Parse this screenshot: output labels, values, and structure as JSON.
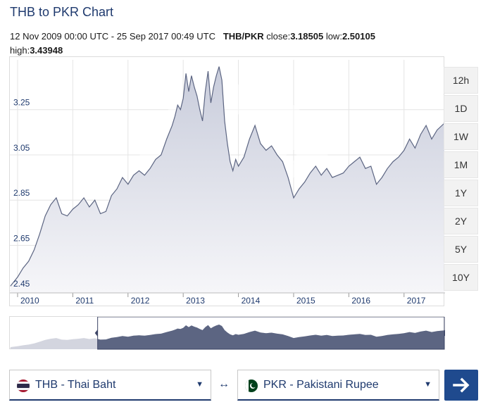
{
  "page": {
    "title": "THB to PKR Chart",
    "date_range": "12 Nov 2009 00:00 UTC - 25 Sep 2017 00:49 UTC",
    "pair": "THB/PKR",
    "close_label": "close:",
    "close_value": "3.18505",
    "low_label": "low:",
    "low_value": "2.50105",
    "high_label": "high:",
    "high_value": "3.43948"
  },
  "range_buttons": [
    "12h",
    "1D",
    "1W",
    "1M",
    "1Y",
    "2Y",
    "5Y",
    "10Y"
  ],
  "converter": {
    "from_label": "THB - Thai Baht",
    "to_label": "PKR - Pakistani Rupee",
    "swap_symbol": "↔",
    "go_icon": "arrow-right-icon"
  },
  "colors": {
    "title": "#1f3a6e",
    "line": "#5c6582",
    "area_top": "#c8ccdb",
    "area_bottom": "#f6f6f9",
    "navigator_fill": "#5c6582",
    "navigator_handle": "#3d4566",
    "go_button": "#1f4a8e"
  },
  "chart_data": {
    "type": "area",
    "title": "",
    "xlabel": "",
    "ylabel": "",
    "ylim": [
      2.44,
      3.47
    ],
    "xlim": [
      2009.86,
      2017.73
    ],
    "y_ticks": [
      2.45,
      2.65,
      2.85,
      3.05,
      3.25
    ],
    "x_ticks": [
      "2010",
      "2011",
      "2012",
      "2013",
      "2014",
      "2015",
      "2016",
      "2017"
    ],
    "x_tick_values": [
      2010,
      2011,
      2012,
      2013,
      2014,
      2015,
      2016,
      2017
    ],
    "grid": true,
    "legend": "none",
    "series": [
      {
        "x": [
          2009.87,
          2010.0,
          2010.1,
          2010.2,
          2010.3,
          2010.4,
          2010.5,
          2010.6,
          2010.7,
          2010.8,
          2010.9,
          2011.0,
          2011.1,
          2011.2,
          2011.3,
          2011.4,
          2011.5,
          2011.6,
          2011.7,
          2011.8,
          2011.9,
          2012.0,
          2012.1,
          2012.2,
          2012.3,
          2012.4,
          2012.5,
          2012.6,
          2012.7,
          2012.8,
          2012.85,
          2012.9,
          2012.95,
          2013.0,
          2013.05,
          2013.1,
          2013.15,
          2013.2,
          2013.25,
          2013.3,
          2013.35,
          2013.4,
          2013.45,
          2013.5,
          2013.55,
          2013.6,
          2013.65,
          2013.7,
          2013.75,
          2013.8,
          2013.85,
          2013.9,
          2013.95,
          2014.0,
          2014.1,
          2014.2,
          2014.3,
          2014.4,
          2014.5,
          2014.6,
          2014.7,
          2014.8,
          2014.9,
          2015.0,
          2015.1,
          2015.2,
          2015.3,
          2015.4,
          2015.5,
          2015.6,
          2015.7,
          2015.8,
          2015.9,
          2016.0,
          2016.1,
          2016.2,
          2016.3,
          2016.4,
          2016.5,
          2016.6,
          2016.7,
          2016.8,
          2016.9,
          2017.0,
          2017.1,
          2017.2,
          2017.3,
          2017.4,
          2017.5,
          2017.6,
          2017.73
        ],
        "values": [
          2.47,
          2.51,
          2.55,
          2.58,
          2.63,
          2.7,
          2.78,
          2.83,
          2.86,
          2.79,
          2.78,
          2.81,
          2.83,
          2.86,
          2.82,
          2.85,
          2.79,
          2.8,
          2.87,
          2.9,
          2.95,
          2.92,
          2.96,
          2.98,
          2.96,
          2.99,
          3.03,
          3.05,
          3.12,
          3.18,
          3.22,
          3.27,
          3.25,
          3.3,
          3.41,
          3.33,
          3.4,
          3.35,
          3.31,
          3.25,
          3.2,
          3.33,
          3.42,
          3.28,
          3.35,
          3.4,
          3.44,
          3.38,
          3.2,
          3.1,
          3.02,
          2.98,
          3.03,
          3.0,
          3.04,
          3.12,
          3.18,
          3.1,
          3.07,
          3.09,
          3.05,
          3.02,
          2.95,
          2.86,
          2.9,
          2.93,
          2.97,
          3.0,
          2.96,
          2.99,
          2.95,
          2.96,
          2.97,
          3.0,
          3.02,
          3.04,
          2.99,
          3.0,
          2.92,
          2.95,
          2.99,
          3.02,
          3.04,
          3.07,
          3.12,
          3.08,
          3.14,
          3.18,
          3.12,
          3.16,
          3.19
        ]
      }
    ]
  }
}
